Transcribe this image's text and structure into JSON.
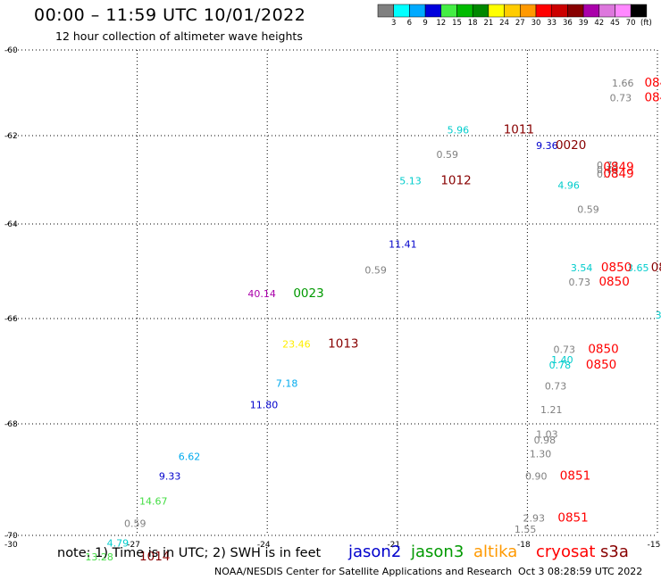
{
  "header": {
    "title": "00:00 – 11:59 UTC 10/01/2022",
    "subtitle": "12 hour collection of altimeter wave heights"
  },
  "colorbar": {
    "colors": [
      "#808080",
      "#00ffff",
      "#00aaff",
      "#0000dd",
      "#44ee44",
      "#00bb00",
      "#008800",
      "#ffff00",
      "#ffcc00",
      "#ff9900",
      "#ff0000",
      "#cc0000",
      "#880000",
      "#aa00aa",
      "#dd77dd",
      "#ff88ff",
      "#000000"
    ],
    "labels": [
      "3",
      "6",
      "9",
      "12",
      "15",
      "18",
      "21",
      "24",
      "27",
      "30",
      "33",
      "36",
      "39",
      "42",
      "45",
      "70"
    ],
    "unit": "(ft)"
  },
  "footer": {
    "note": "note:  1) Time is in UTC;  2) SWH is in feet",
    "credit": "NOAA/NESDIS Center for Satellite Applications and Research",
    "generated": "Oct  3 08:28:59 UTC 2022",
    "satellites": [
      {
        "name": "jason2",
        "color": "#0000cc"
      },
      {
        "name": "jason3",
        "color": "#009900"
      },
      {
        "name": "altika",
        "color": "#ff9900"
      },
      {
        "name": "cryosat",
        "color": "#ff0000"
      },
      {
        "name": "s3a",
        "color": "#880000"
      }
    ]
  },
  "chart_data": {
    "type": "scatter",
    "title": "00:00 – 11:59 UTC 10/01/2022",
    "xlim": [
      -30,
      -15
    ],
    "ylim": [
      -70,
      -60
    ],
    "x_ticks": [
      -27,
      -24,
      -21,
      -18,
      -15
    ],
    "x_tick_labels": [
      "-27",
      "-24",
      "-21",
      "-18",
      "-15"
    ],
    "y_ticks": [
      -60,
      -62,
      -64,
      -66,
      -68,
      -70
    ],
    "y_tick_labels": [
      "-60",
      "-62",
      "-64",
      "-66",
      "-68",
      "-70"
    ],
    "x_corner_label": "-30",
    "grid": true,
    "swh_labels": [
      {
        "x": -16.05,
        "y": -60.85,
        "text": "1.66",
        "color": "#808080"
      },
      {
        "x": -16.1,
        "y": -61.2,
        "text": "0.73",
        "color": "#808080"
      },
      {
        "x": -19.85,
        "y": -61.95,
        "text": "5.96",
        "color": "#00cccc"
      },
      {
        "x": -17.8,
        "y": -62.3,
        "text": "9.36",
        "color": "#0000cc"
      },
      {
        "x": -20.1,
        "y": -62.5,
        "text": "0.59",
        "color": "#808080"
      },
      {
        "x": -16.4,
        "y": -62.75,
        "text": "0.73",
        "color": "#808080"
      },
      {
        "x": -16.4,
        "y": -62.85,
        "text": "0.73",
        "color": "#808080"
      },
      {
        "x": -16.4,
        "y": -62.95,
        "text": "0.73",
        "color": "#808080"
      },
      {
        "x": -20.95,
        "y": -63.1,
        "text": "5.13",
        "color": "#00cccc"
      },
      {
        "x": -17.3,
        "y": -63.2,
        "text": "4.96",
        "color": "#00cccc"
      },
      {
        "x": -16.85,
        "y": -63.75,
        "text": "0.59",
        "color": "#808080"
      },
      {
        "x": -21.2,
        "y": -64.5,
        "text": "11.41",
        "color": "#0000cc"
      },
      {
        "x": -21.75,
        "y": -65.05,
        "text": "0.59",
        "color": "#808080"
      },
      {
        "x": -17.0,
        "y": -65.0,
        "text": "3.54",
        "color": "#00cccc"
      },
      {
        "x": -15.7,
        "y": -65.0,
        "text": "3.65",
        "color": "#00cccc"
      },
      {
        "x": -17.05,
        "y": -65.3,
        "text": "0.73",
        "color": "#808080"
      },
      {
        "x": -24.45,
        "y": -65.55,
        "text": "40.14",
        "color": "#aa00aa"
      },
      {
        "x": -15.05,
        "y": -66.0,
        "text": "3",
        "color": "#00cccc"
      },
      {
        "x": -23.65,
        "y": -66.55,
        "text": "23.46",
        "color": "#ffee00"
      },
      {
        "x": -17.4,
        "y": -66.65,
        "text": "0.73",
        "color": "#808080"
      },
      {
        "x": -17.45,
        "y": -66.85,
        "text": "1.40",
        "color": "#00cccc"
      },
      {
        "x": -17.5,
        "y": -66.95,
        "text": "0.78",
        "color": "#00cccc"
      },
      {
        "x": -17.6,
        "y": -67.35,
        "text": "0.73",
        "color": "#808080"
      },
      {
        "x": -23.8,
        "y": -67.3,
        "text": "7.18",
        "color": "#00aaee"
      },
      {
        "x": -24.4,
        "y": -67.7,
        "text": "11.80",
        "color": "#0000cc"
      },
      {
        "x": -17.7,
        "y": -67.8,
        "text": "1.21",
        "color": "#808080"
      },
      {
        "x": -17.8,
        "y": -68.25,
        "text": "1.03",
        "color": "#808080"
      },
      {
        "x": -17.85,
        "y": -68.35,
        "text": "0.98",
        "color": "#808080"
      },
      {
        "x": -17.95,
        "y": -68.6,
        "text": "1.30",
        "color": "#808080"
      },
      {
        "x": -26.05,
        "y": -68.65,
        "text": "6.62",
        "color": "#00aaee"
      },
      {
        "x": -26.5,
        "y": -69.0,
        "text": "9.33",
        "color": "#0000cc"
      },
      {
        "x": -18.05,
        "y": -69.0,
        "text": "0.90",
        "color": "#808080"
      },
      {
        "x": -26.95,
        "y": -69.45,
        "text": "14.67",
        "color": "#44dd44"
      },
      {
        "x": -27.3,
        "y": -69.85,
        "text": "0.59",
        "color": "#808080"
      },
      {
        "x": -18.1,
        "y": -69.75,
        "text": "2.93",
        "color": "#808080"
      },
      {
        "x": -18.3,
        "y": -69.95,
        "text": "1.55",
        "color": "#808080"
      },
      {
        "x": -27.7,
        "y": -70.2,
        "text": "4.79",
        "color": "#00cccc"
      },
      {
        "x": -28.2,
        "y": -70.45,
        "text": "13.28",
        "color": "#44dd44"
      }
    ],
    "time_labels": [
      {
        "x": -15.3,
        "y": -60.85,
        "text": "084",
        "color": "#ff0000"
      },
      {
        "x": -15.3,
        "y": -61.2,
        "text": "084",
        "color": "#ff0000"
      },
      {
        "x": -18.55,
        "y": -61.95,
        "text": "1011",
        "color": "#880000"
      },
      {
        "x": -17.35,
        "y": -62.3,
        "text": "0020",
        "color": "#880000"
      },
      {
        "x": -16.25,
        "y": -62.8,
        "text": "0849",
        "color": "#ff0000"
      },
      {
        "x": -16.25,
        "y": -62.95,
        "text": "0849",
        "color": "#ff0000"
      },
      {
        "x": -20.0,
        "y": -63.1,
        "text": "1012",
        "color": "#880000"
      },
      {
        "x": -16.3,
        "y": -65.0,
        "text": "0850",
        "color": "#ff0000"
      },
      {
        "x": -16.35,
        "y": -65.3,
        "text": "0850",
        "color": "#ff0000"
      },
      {
        "x": -15.15,
        "y": -65.0,
        "text": "08",
        "color": "#880000"
      },
      {
        "x": -23.4,
        "y": -65.55,
        "text": "0023",
        "color": "#009900"
      },
      {
        "x": -22.6,
        "y": -66.55,
        "text": "1013",
        "color": "#880000"
      },
      {
        "x": -16.6,
        "y": -66.65,
        "text": "0850",
        "color": "#ff0000"
      },
      {
        "x": -16.65,
        "y": -66.95,
        "text": "0850",
        "color": "#ff0000"
      },
      {
        "x": -17.25,
        "y": -69.0,
        "text": "0851",
        "color": "#ff0000"
      },
      {
        "x": -17.3,
        "y": -69.75,
        "text": "0851",
        "color": "#ff0000"
      },
      {
        "x": -26.95,
        "y": -70.45,
        "text": "1014",
        "color": "#880000"
      }
    ]
  }
}
